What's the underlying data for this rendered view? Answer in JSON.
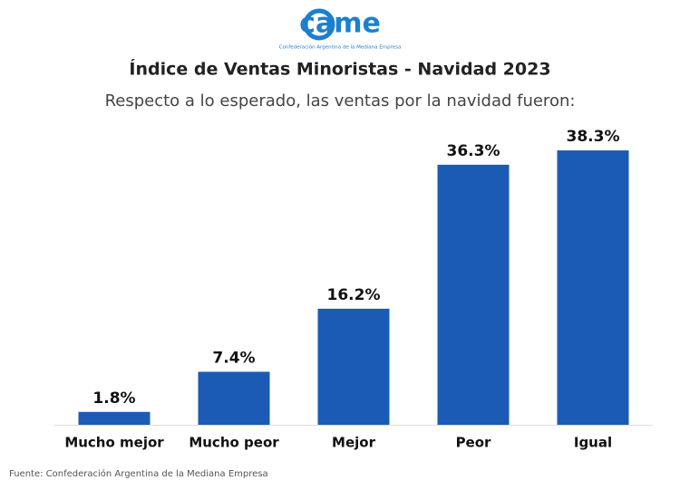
{
  "logo": {
    "text": "came",
    "subtitle": "Confederación Argentina de la Mediana Empresa"
  },
  "chart_data": {
    "type": "bar",
    "title": "Índice de Ventas Minoristas - Navidad 2023",
    "subtitle": "Respecto a lo esperado, las ventas por la navidad fueron:",
    "categories": [
      "Mucho mejor",
      "Mucho peor",
      "Mejor",
      "Peor",
      "Igual"
    ],
    "values": [
      1.8,
      7.4,
      16.2,
      36.3,
      38.3
    ],
    "value_labels": [
      "1.8%",
      "7.4%",
      "16.2%",
      "36.3%",
      "38.3%"
    ],
    "color": "#1c5bb5",
    "source": "Fuente: Confederación Argentina de la Mediana Empresa"
  }
}
